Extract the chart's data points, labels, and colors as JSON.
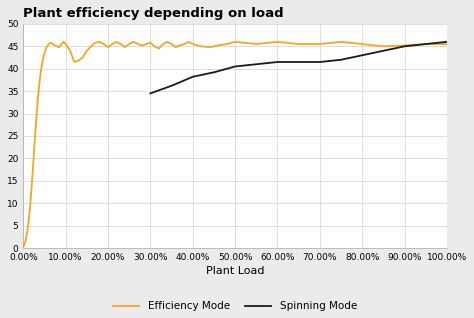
{
  "title": "Plant efficiency depending on load",
  "xlabel": "Plant Load",
  "ylabel": "",
  "ylim": [
    0,
    50
  ],
  "yticks": [
    0,
    5,
    10,
    15,
    20,
    25,
    30,
    35,
    40,
    45,
    50
  ],
  "xticks": [
    0.0,
    0.1,
    0.2,
    0.3,
    0.4,
    0.5,
    0.6,
    0.7,
    0.8,
    0.9,
    1.0
  ],
  "xlim": [
    0.0,
    1.0
  ],
  "efficiency_x": [
    0.0,
    0.005,
    0.01,
    0.015,
    0.02,
    0.025,
    0.03,
    0.035,
    0.04,
    0.045,
    0.05,
    0.055,
    0.06,
    0.065,
    0.07,
    0.075,
    0.08,
    0.085,
    0.09,
    0.095,
    0.1,
    0.11,
    0.12,
    0.13,
    0.14,
    0.15,
    0.16,
    0.17,
    0.18,
    0.19,
    0.2,
    0.21,
    0.22,
    0.23,
    0.24,
    0.25,
    0.26,
    0.27,
    0.28,
    0.29,
    0.3,
    0.31,
    0.32,
    0.33,
    0.34,
    0.35,
    0.36,
    0.37,
    0.38,
    0.39,
    0.4,
    0.42,
    0.44,
    0.46,
    0.48,
    0.5,
    0.55,
    0.6,
    0.65,
    0.7,
    0.75,
    0.8,
    0.85,
    0.9,
    0.95,
    1.0
  ],
  "efficiency_y": [
    0.2,
    1.5,
    4.0,
    8.0,
    14.0,
    21.0,
    28.0,
    34.0,
    38.5,
    41.5,
    43.5,
    44.8,
    45.5,
    45.8,
    45.5,
    45.2,
    45.0,
    44.8,
    45.5,
    46.0,
    45.5,
    44.2,
    41.5,
    41.8,
    42.5,
    44.0,
    45.0,
    45.8,
    46.0,
    45.5,
    44.8,
    45.5,
    46.0,
    45.5,
    44.8,
    45.5,
    46.0,
    45.5,
    45.2,
    45.5,
    45.8,
    45.0,
    44.5,
    45.5,
    46.0,
    45.5,
    44.8,
    45.2,
    45.5,
    46.0,
    45.5,
    45.0,
    44.8,
    45.2,
    45.5,
    46.0,
    45.5,
    46.0,
    45.5,
    45.5,
    46.0,
    45.5,
    45.0,
    45.2,
    45.5,
    45.5
  ],
  "spinning_x": [
    0.3,
    0.35,
    0.4,
    0.45,
    0.5,
    0.55,
    0.6,
    0.65,
    0.7,
    0.75,
    0.8,
    0.85,
    0.9,
    0.95,
    1.0
  ],
  "spinning_y": [
    34.5,
    36.2,
    38.2,
    39.2,
    40.5,
    41.0,
    41.5,
    41.5,
    41.5,
    42.0,
    43.0,
    44.0,
    45.0,
    45.5,
    46.0
  ],
  "efficiency_color": "#F5A623",
  "spinning_color": "#1A1A1A",
  "background_color": "#EBEBEB",
  "plot_bg_color": "#FFFFFF",
  "grid_color": "#D0D0D0",
  "title_fontsize": 9.5,
  "label_fontsize": 8,
  "tick_fontsize": 6.5,
  "legend_fontsize": 7.5,
  "line_width": 1.3
}
